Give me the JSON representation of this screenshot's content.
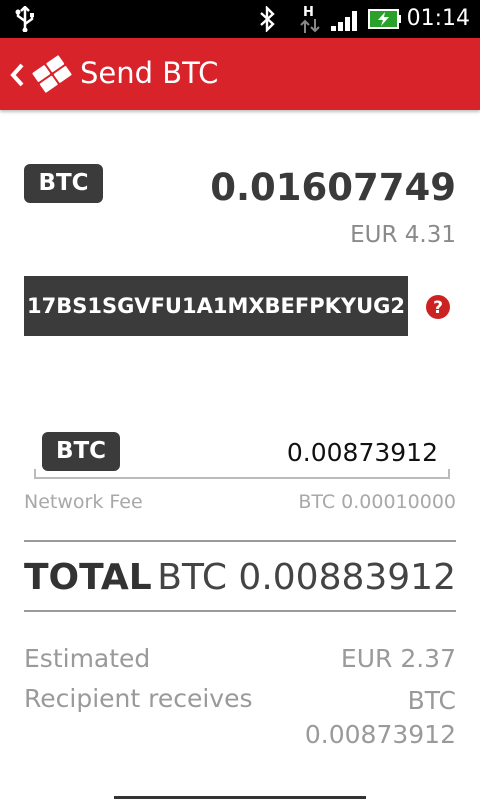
{
  "status_bar": {
    "network_type": "H",
    "time": "01:14",
    "icons": [
      "usb-icon",
      "bluetooth-icon",
      "data-transfer-icon",
      "signal-icon",
      "battery-charging-icon"
    ]
  },
  "header": {
    "title": "Send BTC",
    "icons": [
      "back-chevron-icon",
      "app-logo-icon"
    ]
  },
  "balance": {
    "currency_badge": "BTC",
    "amount": "0.01607749",
    "fiat": "EUR 4.31"
  },
  "recipient": {
    "address": "17BS1SGVFU1A1MXBEFPKYUG2",
    "help_icon": "help-icon",
    "help_symbol": "?"
  },
  "send_amount": {
    "currency_badge": "BTC",
    "value": "0.00873912"
  },
  "fee": {
    "label": "Network Fee",
    "value": "BTC 0.00010000"
  },
  "total": {
    "label": "TOTAL",
    "value": "BTC 0.00883912"
  },
  "estimated": {
    "label": "Estimated",
    "value": "EUR 2.37"
  },
  "recipient_receives": {
    "label": "Recipient receives",
    "value_line1": "BTC",
    "value_line2": "0.00873912"
  },
  "colors": {
    "header_red": "#d8232a",
    "dark_badge": "#3b3b3b",
    "help_red": "#cc2222"
  }
}
